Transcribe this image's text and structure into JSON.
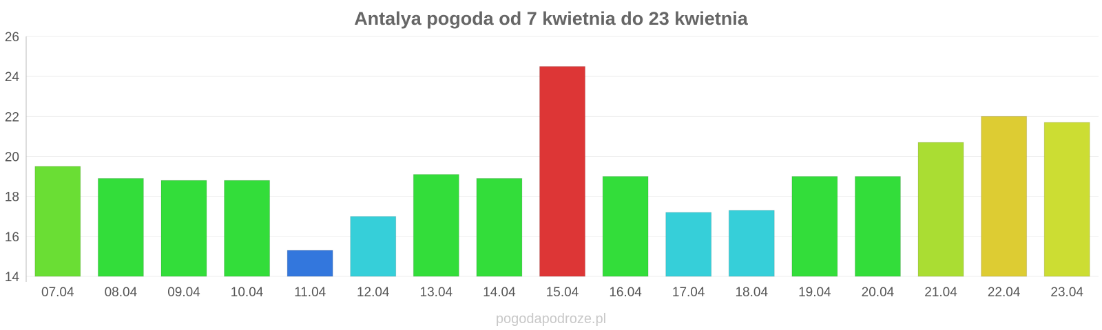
{
  "chart_data": {
    "type": "bar",
    "title": "Antalya pogoda od 7 kwietnia do 23 kwietnia",
    "xlabel": "",
    "ylabel": "",
    "ylim": [
      14,
      26
    ],
    "yticks": [
      14,
      16,
      18,
      20,
      22,
      24,
      26
    ],
    "grid": true,
    "categories": [
      "07.04",
      "08.04",
      "09.04",
      "10.04",
      "11.04",
      "12.04",
      "13.04",
      "14.04",
      "15.04",
      "16.04",
      "17.04",
      "18.04",
      "19.04",
      "20.04",
      "21.04",
      "22.04",
      "23.04"
    ],
    "values": [
      19.5,
      18.9,
      18.8,
      18.8,
      15.3,
      17.0,
      19.1,
      18.9,
      24.5,
      19.0,
      17.2,
      17.3,
      19.0,
      19.0,
      20.7,
      22.0,
      21.7
    ],
    "colors": [
      "#6ade34",
      "#33dd3a",
      "#33dd3a",
      "#33dd3a",
      "#3377dd",
      "#36cfd9",
      "#33dd3a",
      "#33dd3a",
      "#dd3636",
      "#33dd3a",
      "#36cfd9",
      "#36cfd9",
      "#33dd3a",
      "#33dd3a",
      "#aadd33",
      "#ddcc33",
      "#ccdd33"
    ]
  },
  "watermark": "pogodapodroze.pl"
}
